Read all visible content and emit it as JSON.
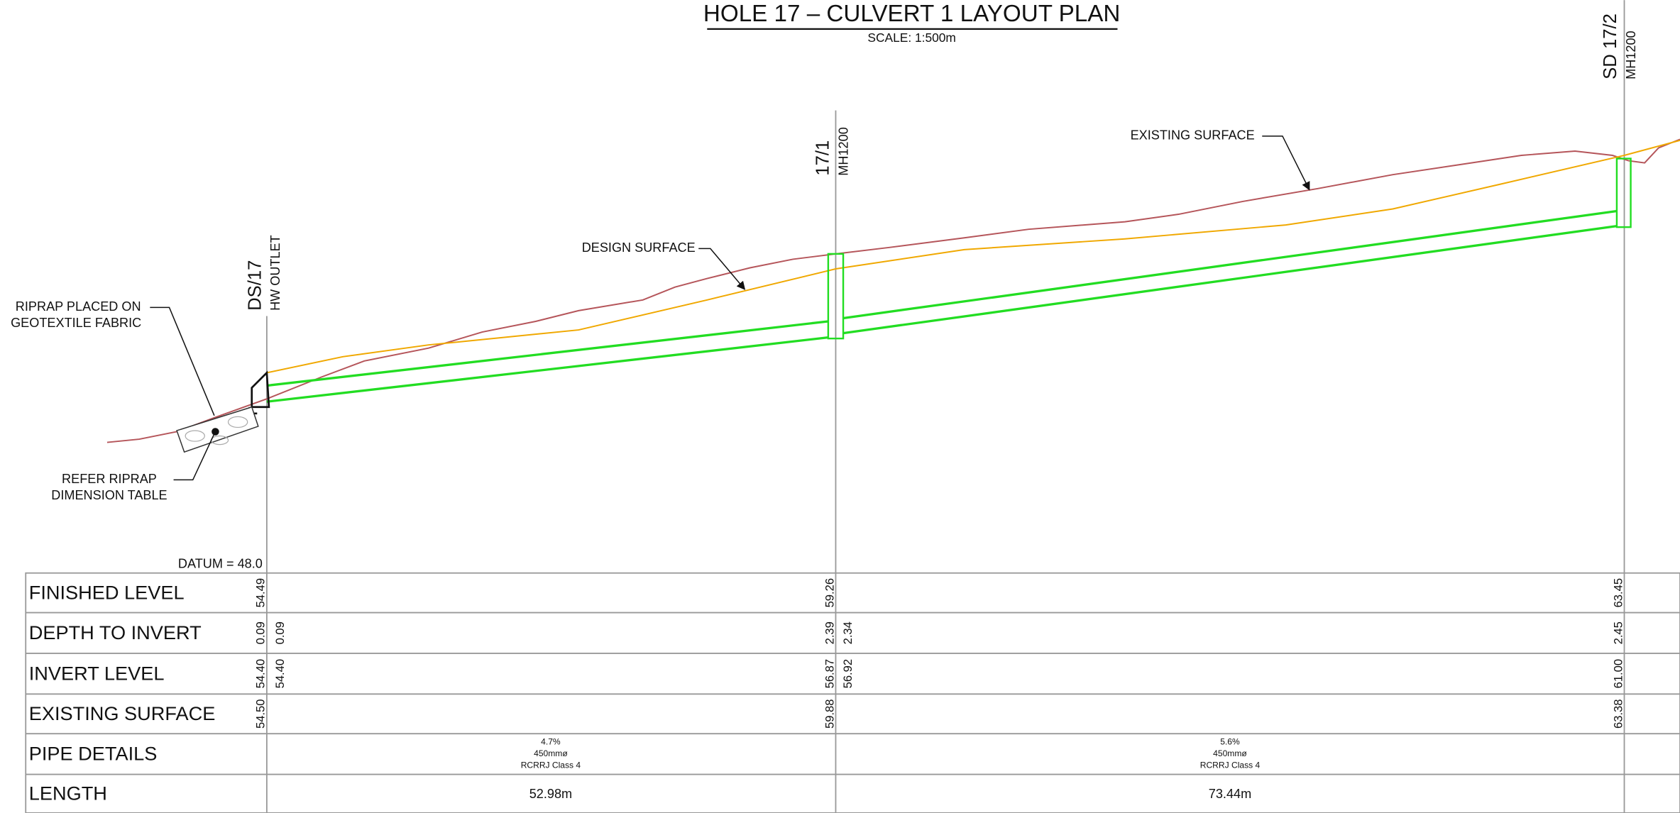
{
  "header": {
    "title": "HOLE 17 – CULVERT 1 LAYOUT PLAN",
    "scale": "SCALE: 1:500m"
  },
  "stations": [
    {
      "id": "DS/17",
      "type": "HW OUTLET"
    },
    {
      "id": "17/1",
      "type": "MH1200"
    },
    {
      "id": "SD 17/2",
      "type": "MH1200"
    }
  ],
  "annotations": {
    "riprap_placed": [
      "RIPRAP PLACED ON",
      "GEOTEXTILE FABRIC"
    ],
    "refer_riprap": [
      "REFER RIPRAP",
      "DIMENSION TABLE"
    ],
    "design_surface": "DESIGN SURFACE",
    "existing_surface": "EXISTING SURFACE"
  },
  "datum": "DATUM = 48.0",
  "table": {
    "rows": [
      {
        "label": "FINISHED LEVEL",
        "values": [
          "54.49",
          "59.26",
          "63.45"
        ]
      },
      {
        "label": "DEPTH TO INVERT",
        "values": [
          "0.09",
          "0.09",
          "2.39",
          "2.34",
          "2.45"
        ]
      },
      {
        "label": "INVERT LEVEL",
        "values": [
          "54.40",
          "54.40",
          "56.87",
          "56.92",
          "61.00"
        ]
      },
      {
        "label": "EXISTING SURFACE",
        "values": [
          "54.50",
          "59.88",
          "63.38"
        ]
      },
      {
        "label": "PIPE DETAILS",
        "values": [
          [
            "4.7%",
            "450mmø",
            "RCRRJ Class 4"
          ],
          [
            "5.6%",
            "450mmø",
            "RCRRJ Class 4"
          ]
        ]
      },
      {
        "label": "LENGTH",
        "values": [
          "52.98m",
          "73.44m"
        ]
      }
    ]
  }
}
